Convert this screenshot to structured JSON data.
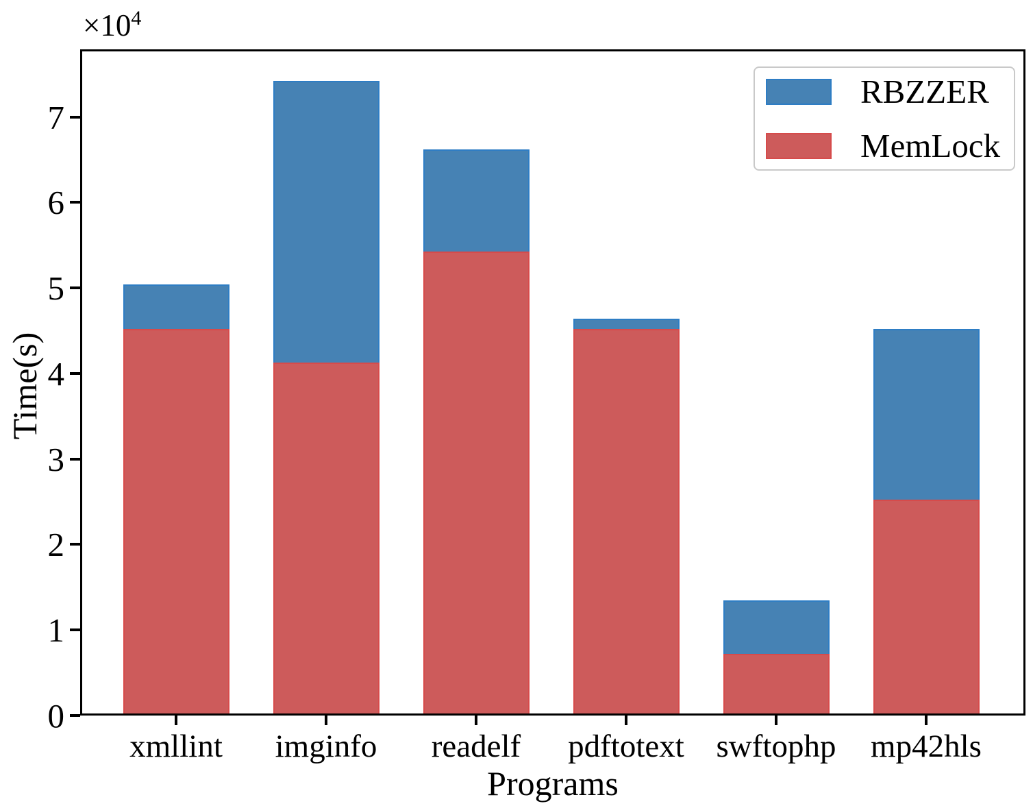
{
  "chart_data": {
    "type": "bar",
    "bar_style": "overlaid-stacked-look; red MemLock bars drawn in front from 0, blue RBZZER region visible from MemLock top up to RBZZER value",
    "title": "",
    "xlabel": "Programs",
    "ylabel": "Time(s)",
    "y_offset_base": "×10",
    "y_offset_exponent": "4",
    "y_unit_multiplier": 10000,
    "categories": [
      "xmllint",
      "imginfo",
      "readelf",
      "pdftotext",
      "swftophp",
      "mp42hls"
    ],
    "series": [
      {
        "name": "RBZZER",
        "fill_color": "#4682B4",
        "edge_color": "#2E7DC4",
        "values_x10k": [
          5.02,
          7.4,
          6.6,
          4.62,
          1.32,
          4.5
        ]
      },
      {
        "name": "MemLock",
        "fill_color": "#CD5B5B",
        "edge_color": "#D64B4B",
        "values_x10k": [
          4.5,
          4.1,
          5.4,
          4.5,
          0.7,
          2.5
        ]
      }
    ],
    "ylim_x10k": [
      0,
      7.79
    ],
    "yticks_x10k": [
      0,
      1,
      2,
      3,
      4,
      5,
      6,
      7
    ],
    "grid": false,
    "legend_position": "upper right",
    "legend_items": [
      "RBZZER",
      "MemLock"
    ],
    "axis_color": "#000000",
    "text_color": "#000000",
    "background_color": "#ffffff"
  }
}
